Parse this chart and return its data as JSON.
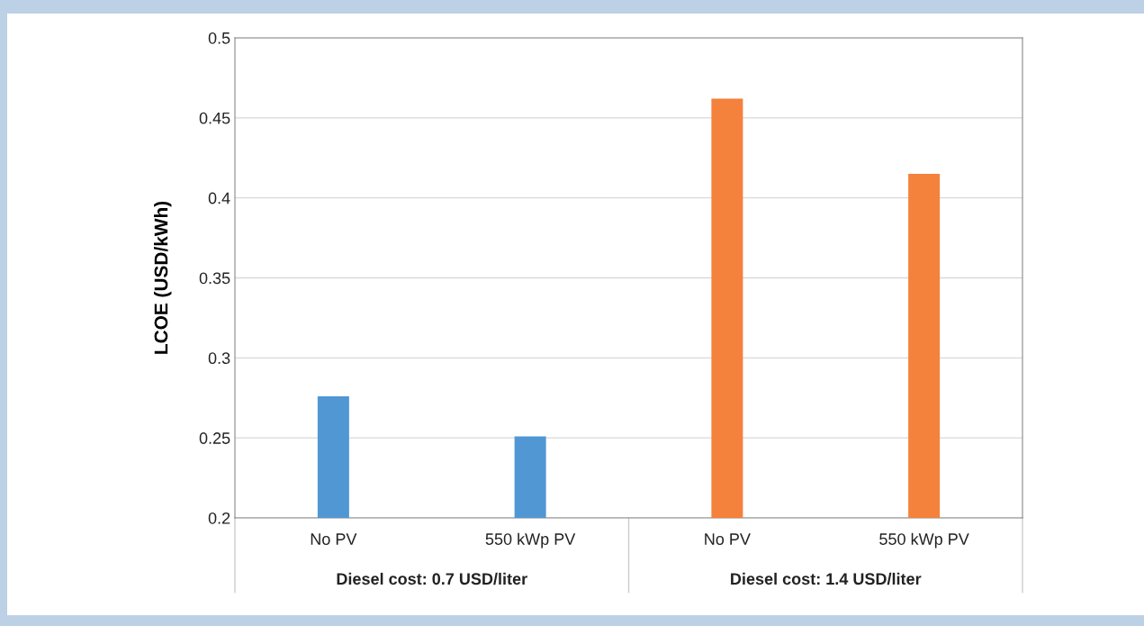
{
  "chart_data": {
    "type": "bar",
    "ylabel": "LCOE (USD/kWh)",
    "categories": [
      "No PV",
      "550 kWp PV",
      "No PV",
      "550 kWp PV"
    ],
    "values": [
      0.276,
      0.251,
      0.462,
      0.415
    ],
    "colors": [
      "#5197d4",
      "#5197d4",
      "#f4813c",
      "#f4813c"
    ],
    "ylim": [
      0.2,
      0.5
    ],
    "yticks": [
      0.2,
      0.25,
      0.3,
      0.35,
      0.4,
      0.45,
      0.5
    ],
    "grid": "y",
    "annotations": [
      "Diesel cost: 0.7 USD/liter",
      "Diesel cost: 1.4 USD/liter"
    ]
  }
}
